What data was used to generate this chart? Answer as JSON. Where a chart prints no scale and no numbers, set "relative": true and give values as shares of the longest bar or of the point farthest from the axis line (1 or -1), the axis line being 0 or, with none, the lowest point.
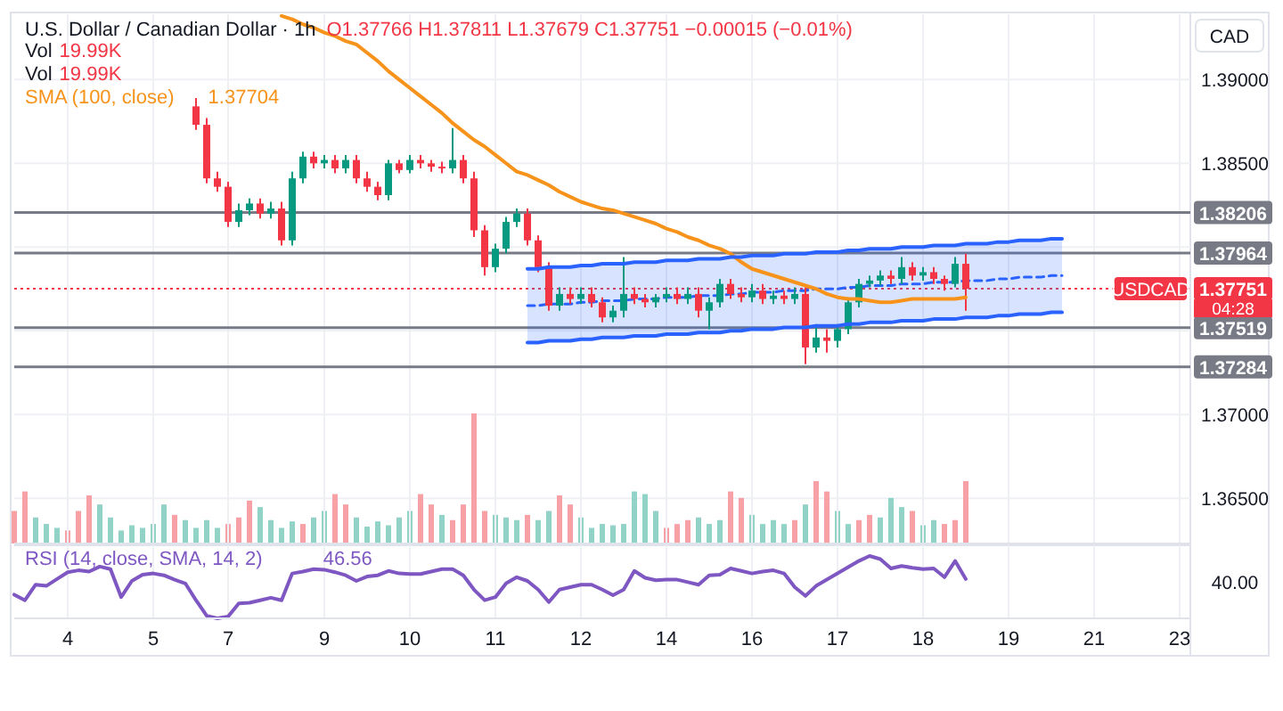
{
  "chart_data": [
    {
      "type": "candlestick",
      "title": "U.S. Dollar / Canadian Dollar · 1h",
      "subtitle": "O1.37766 H1.37811 L1.37679 C1.37751 −0.00015 (−0.01%)",
      "ylabel": "CAD",
      "annotations": [
        "Vol 19.99K",
        "Vol 19.99K",
        "1.37704",
        {
          "text": "USDCAD",
          "y": 1.37751
        },
        "04:28"
      ],
      "categories": [
        null,
        null,
        null,
        null,
        null,
        "4",
        null,
        null,
        null,
        null,
        null,
        null,
        null,
        "5",
        null,
        null,
        null,
        null,
        null,
        null,
        "7",
        null,
        null,
        null,
        null,
        null,
        null,
        null,
        null,
        "9",
        null,
        null,
        null,
        null,
        null,
        null,
        null,
        "10",
        null,
        null,
        null,
        null,
        null,
        null,
        null,
        "11",
        null,
        null,
        null,
        null,
        null,
        null,
        null,
        "12",
        null,
        null,
        null,
        null,
        null,
        null,
        null,
        "14",
        null,
        null,
        null,
        null,
        null,
        null,
        null,
        "16",
        null,
        null,
        null,
        null,
        null,
        null,
        null,
        "17",
        null,
        null,
        null,
        null,
        null,
        null,
        null,
        "18",
        null,
        null,
        null,
        null,
        null,
        null,
        null,
        "19",
        null,
        null,
        null,
        null,
        null,
        null,
        null,
        "21",
        null,
        null,
        null,
        null,
        null,
        null,
        null,
        "23",
        null
      ],
      "ohlc": [
        null,
        null,
        null,
        null,
        null,
        null,
        null,
        null,
        null,
        null,
        null,
        null,
        null,
        null,
        null,
        null,
        null,
        [
          1.3884,
          1.3889,
          1.387,
          1.3873
        ],
        [
          1.3873,
          1.3877,
          1.3838,
          1.3841
        ],
        [
          1.3841,
          1.3845,
          1.3833,
          1.3836
        ],
        [
          1.3836,
          1.3839,
          1.3812,
          1.3815
        ],
        [
          1.3815,
          1.3826,
          1.3812,
          1.3822
        ],
        [
          1.3822,
          1.3829,
          1.3819,
          1.3826
        ],
        [
          1.3826,
          1.3829,
          1.3817,
          1.382
        ],
        [
          1.382,
          1.3827,
          1.3817,
          1.3823
        ],
        [
          1.3823,
          1.3827,
          1.3801,
          1.3804
        ],
        [
          1.3804,
          1.3845,
          1.3801,
          1.3841
        ],
        [
          1.3841,
          1.3857,
          1.3838,
          1.3854
        ],
        [
          1.3854,
          1.3857,
          1.3847,
          1.385
        ],
        [
          1.385,
          1.3855,
          1.3847,
          1.3852
        ],
        [
          1.3852,
          1.3855,
          1.3844,
          1.3847
        ],
        [
          1.3847,
          1.3855,
          1.3844,
          1.3852
        ],
        [
          1.3852,
          1.3855,
          1.3838,
          1.3841
        ],
        [
          1.3841,
          1.3845,
          1.3833,
          1.3836
        ],
        [
          1.3836,
          1.3839,
          1.3828,
          1.3831
        ],
        [
          1.3831,
          1.3852,
          1.3828,
          1.385
        ],
        [
          1.385,
          1.3852,
          1.3844,
          1.3846
        ],
        [
          1.3846,
          1.3855,
          1.3844,
          1.3852
        ],
        [
          1.3852,
          1.3855,
          1.3847,
          1.385
        ],
        [
          1.385,
          1.3852,
          1.3845,
          1.3848
        ],
        [
          1.3848,
          1.3851,
          1.3844,
          1.3847
        ],
        [
          1.3847,
          1.3871,
          1.3844,
          1.3852
        ],
        [
          1.3852,
          1.3855,
          1.3838,
          1.3841
        ],
        [
          1.3841,
          1.3845,
          1.3806,
          1.381
        ],
        [
          1.381,
          1.3813,
          1.3783,
          1.3788
        ],
        [
          1.3788,
          1.3802,
          1.3785,
          1.3799
        ],
        [
          1.3799,
          1.3818,
          1.3796,
          1.3815
        ],
        [
          1.3815,
          1.3823,
          1.3812,
          1.382
        ],
        [
          1.382,
          1.3823,
          1.3801,
          1.3804
        ],
        [
          1.3804,
          1.3807,
          1.3785,
          1.3788
        ],
        [
          1.3788,
          1.3791,
          1.3762,
          1.3765
        ],
        [
          1.3765,
          1.3776,
          1.3762,
          1.3772
        ],
        [
          1.3772,
          1.3776,
          1.3766,
          1.3769
        ],
        [
          1.3769,
          1.3776,
          1.3766,
          1.3772
        ],
        [
          1.3772,
          1.3776,
          1.3764,
          1.3767
        ],
        [
          1.3767,
          1.377,
          1.3755,
          1.3758
        ],
        [
          1.3758,
          1.3765,
          1.3755,
          1.3762
        ],
        [
          1.3762,
          1.3794,
          1.3758,
          1.3772
        ],
        [
          1.3772,
          1.3776,
          1.3766,
          1.3769
        ],
        [
          1.3769,
          1.3772,
          1.3764,
          1.3767
        ],
        [
          1.3767,
          1.3772,
          1.3764,
          1.377
        ],
        [
          1.377,
          1.3776,
          1.3767,
          1.3772
        ],
        [
          1.3772,
          1.3776,
          1.3766,
          1.3769
        ],
        [
          1.3769,
          1.3776,
          1.3766,
          1.3772
        ],
        [
          1.3772,
          1.3776,
          1.3758,
          1.3762
        ],
        [
          1.3762,
          1.377,
          1.3751,
          1.3767
        ],
        [
          1.3767,
          1.3781,
          1.3764,
          1.3778
        ],
        [
          1.3778,
          1.3781,
          1.3769,
          1.3772
        ],
        [
          1.3772,
          1.3776,
          1.3767,
          1.377
        ],
        [
          1.377,
          1.3778,
          1.3767,
          1.3774
        ],
        [
          1.3774,
          1.3778,
          1.3766,
          1.3769
        ],
        [
          1.3769,
          1.3774,
          1.3766,
          1.3771
        ],
        [
          1.3771,
          1.3774,
          1.3766,
          1.3769
        ],
        [
          1.3769,
          1.3776,
          1.3766,
          1.3772
        ],
        [
          1.3772,
          1.3776,
          1.373,
          1.374
        ],
        [
          1.374,
          1.3754,
          1.3737,
          1.3746
        ],
        [
          1.3746,
          1.3751,
          1.3737,
          1.3744
        ],
        [
          1.3744,
          1.3754,
          1.374,
          1.3751
        ],
        [
          1.3751,
          1.377,
          1.3748,
          1.3767
        ],
        [
          1.3767,
          1.3781,
          1.3764,
          1.3778
        ],
        [
          1.3778,
          1.3783,
          1.3776,
          1.378
        ],
        [
          1.378,
          1.3786,
          1.3777,
          1.3783
        ],
        [
          1.3783,
          1.3786,
          1.3778,
          1.3781
        ],
        [
          1.3781,
          1.3794,
          1.3778,
          1.3788
        ],
        [
          1.3788,
          1.3791,
          1.378,
          1.3783
        ],
        [
          1.3783,
          1.3788,
          1.378,
          1.3785
        ],
        [
          1.3785,
          1.3788,
          1.3778,
          1.3781
        ],
        [
          1.3781,
          1.3783,
          1.3774,
          1.3778
        ],
        [
          1.3778,
          1.3794,
          1.3776,
          1.379
        ],
        [
          1.379,
          1.3796,
          1.3762,
          1.37751
        ],
        null,
        null,
        null,
        null,
        null,
        null,
        null,
        null,
        null,
        null,
        null,
        null,
        null,
        null,
        null,
        null,
        null,
        null,
        null,
        null,
        null
      ],
      "colors": [
        null,
        null,
        null,
        null,
        null,
        null,
        null,
        null,
        null,
        null,
        null,
        null,
        null,
        null,
        null,
        null,
        null,
        "#f23645",
        "#f23645",
        "#f23645",
        "#f23645",
        "#089981",
        "#089981",
        "#f23645",
        "#089981",
        "#f23645",
        "#089981",
        "#089981",
        "#f23645",
        "#089981",
        "#f23645",
        "#089981",
        "#f23645",
        "#f23645",
        "#f23645",
        "#089981",
        "#f23645",
        "#089981",
        "#f23645",
        "#f23645",
        "#f23645",
        "#089981",
        "#f23645",
        "#f23645",
        "#f23645",
        "#089981",
        "#089981",
        "#089981",
        "#f23645",
        "#f23645",
        "#f23645",
        "#089981",
        "#f23645",
        "#089981",
        "#f23645",
        "#f23645",
        "#089981",
        "#089981",
        "#f23645",
        "#f23645",
        "#089981",
        "#089981",
        "#f23645",
        "#089981",
        "#f23645",
        "#089981",
        "#089981",
        "#f23645",
        "#f23645",
        "#089981",
        "#f23645",
        "#089981",
        "#f23645",
        "#089981",
        "#f23645",
        "#089981",
        "#f23645",
        "#089981",
        "#089981",
        "#089981",
        "#089981",
        "#089981",
        "#f23645",
        "#089981",
        "#f23645",
        "#089981",
        "#f23645",
        "#f23645",
        "#089981",
        "#f23645",
        null,
        null,
        null,
        null,
        null,
        null,
        null,
        null,
        null,
        null,
        null,
        null,
        null,
        null,
        null,
        null,
        null,
        null,
        null,
        null,
        null
      ],
      "series": [
        {
          "name": "SMA (100, close)",
          "type": "line",
          "color": "#f7931a",
          "values": [
            null,
            null,
            null,
            null,
            null,
            null,
            null,
            null,
            null,
            null,
            null,
            null,
            null,
            null,
            null,
            null,
            null,
            null,
            null,
            null,
            null,
            null,
            null,
            null,
            null,
            1.3938,
            1.3936,
            1.3933,
            1.3931,
            1.3928,
            1.3926,
            1.3923,
            1.3921,
            1.3916,
            1.3911,
            1.3905,
            1.39,
            1.3895,
            1.389,
            1.3885,
            1.388,
            1.3874,
            1.3869,
            1.3864,
            1.386,
            1.3855,
            1.385,
            1.3845,
            1.3843,
            1.384,
            1.3837,
            1.3833,
            1.383,
            1.3827,
            1.3825,
            1.3823,
            1.3822,
            1.382,
            1.3818,
            1.3816,
            1.3814,
            1.3811,
            1.3809,
            1.3806,
            1.3804,
            1.3801,
            1.3799,
            1.3796,
            1.3791,
            1.3787,
            1.3785,
            1.3783,
            1.3781,
            1.3779,
            1.3777,
            1.3775,
            1.3772,
            1.377,
            1.3769,
            1.3769,
            1.3768,
            1.3767,
            1.3767,
            1.3768,
            1.3769,
            1.3769,
            1.3769,
            1.3769,
            1.3769,
            1.377,
            null,
            null,
            null,
            null,
            null,
            null,
            null,
            null,
            null,
            null,
            null,
            null,
            null,
            null,
            null,
            null,
            null,
            null,
            null,
            null,
            null
          ]
        },
        {
          "type": "line",
          "color": "#2962ff",
          "line_style": "dashed",
          "values": [
            null,
            null,
            null,
            null,
            null,
            null,
            null,
            null,
            null,
            null,
            null,
            null,
            null,
            null,
            null,
            null,
            null,
            null,
            null,
            null,
            null,
            null,
            null,
            null,
            null,
            null,
            null,
            null,
            null,
            null,
            null,
            null,
            null,
            null,
            null,
            null,
            null,
            null,
            null,
            null,
            null,
            null,
            null,
            null,
            null,
            null,
            null,
            null,
            1.3765,
            1.3765,
            1.3766,
            1.3766,
            1.3766,
            1.3767,
            1.3767,
            1.3768,
            1.3768,
            1.3768,
            1.3769,
            1.3769,
            1.3769,
            1.377,
            1.377,
            1.377,
            1.3771,
            1.3771,
            1.3771,
            1.3772,
            1.3772,
            1.3773,
            1.3773,
            1.3773,
            1.3774,
            1.3774,
            1.3774,
            1.3775,
            1.3775,
            1.3775,
            1.3776,
            1.3776,
            1.3777,
            1.3777,
            1.3777,
            1.3778,
            1.3778,
            1.3778,
            1.3779,
            1.3779,
            1.3779,
            1.378,
            1.378,
            1.378,
            1.3781,
            1.3781,
            1.3782,
            1.3782,
            1.3782,
            1.3783,
            1.3783,
            null,
            null,
            null,
            null,
            null,
            null,
            null,
            null,
            null,
            null,
            null,
            null
          ],
          "upper": [
            null,
            null,
            null,
            null,
            null,
            null,
            null,
            null,
            null,
            null,
            null,
            null,
            null,
            null,
            null,
            null,
            null,
            null,
            null,
            null,
            null,
            null,
            null,
            null,
            null,
            null,
            null,
            null,
            null,
            null,
            null,
            null,
            null,
            null,
            null,
            null,
            null,
            null,
            null,
            null,
            null,
            null,
            null,
            null,
            null,
            null,
            null,
            null,
            1.3787,
            1.3787,
            1.3788,
            1.3788,
            1.3788,
            1.3789,
            1.3789,
            1.379,
            1.379,
            1.379,
            1.3791,
            1.3791,
            1.3791,
            1.3792,
            1.3792,
            1.3792,
            1.3793,
            1.3793,
            1.3793,
            1.3794,
            1.3794,
            1.3795,
            1.3795,
            1.3795,
            1.3796,
            1.3796,
            1.3796,
            1.3797,
            1.3797,
            1.3797,
            1.3798,
            1.3798,
            1.3799,
            1.3799,
            1.3799,
            1.38,
            1.38,
            1.38,
            1.3801,
            1.3801,
            1.3801,
            1.3802,
            1.3802,
            1.3802,
            1.3803,
            1.3803,
            1.3804,
            1.3804,
            1.3804,
            1.3805,
            1.3805,
            null,
            null,
            null,
            null,
            null,
            null,
            null,
            null,
            null,
            null,
            null,
            null
          ],
          "lower": [
            null,
            null,
            null,
            null,
            null,
            null,
            null,
            null,
            null,
            null,
            null,
            null,
            null,
            null,
            null,
            null,
            null,
            null,
            null,
            null,
            null,
            null,
            null,
            null,
            null,
            null,
            null,
            null,
            null,
            null,
            null,
            null,
            null,
            null,
            null,
            null,
            null,
            null,
            null,
            null,
            null,
            null,
            null,
            null,
            null,
            null,
            null,
            null,
            1.3743,
            1.3743,
            1.3744,
            1.3744,
            1.3744,
            1.3745,
            1.3745,
            1.3746,
            1.3746,
            1.3746,
            1.3747,
            1.3747,
            1.3747,
            1.3748,
            1.3748,
            1.3748,
            1.3749,
            1.3749,
            1.3749,
            1.375,
            1.375,
            1.3751,
            1.3751,
            1.3751,
            1.3752,
            1.3752,
            1.3752,
            1.3753,
            1.3753,
            1.3753,
            1.3754,
            1.3754,
            1.3755,
            1.3755,
            1.3755,
            1.3756,
            1.3756,
            1.3756,
            1.3757,
            1.3757,
            1.3757,
            1.3758,
            1.3758,
            1.3758,
            1.3759,
            1.3759,
            1.376,
            1.376,
            1.376,
            1.3761,
            1.3761,
            null,
            null,
            null,
            null,
            null,
            null,
            null,
            null,
            null,
            null,
            null,
            null
          ]
        },
        {
          "type": "line",
          "color": "#2962ff",
          "values": [
            null,
            null,
            null,
            null,
            null,
            null,
            null,
            null,
            null,
            null,
            null,
            null,
            null,
            null,
            null,
            null,
            null,
            null,
            null,
            null,
            null,
            null,
            null,
            null,
            null,
            null,
            null,
            null,
            null,
            null,
            null,
            null,
            null,
            null,
            null,
            null,
            null,
            null,
            null,
            null,
            null,
            null,
            null,
            null,
            null,
            null,
            null,
            null,
            1.3787,
            1.3787,
            1.3788,
            1.3788,
            1.3788,
            1.3789,
            1.3789,
            1.379,
            1.379,
            1.379,
            1.3791,
            1.3791,
            1.3791,
            1.3792,
            1.3792,
            1.3792,
            1.3793,
            1.3793,
            1.3793,
            1.3794,
            1.3794,
            1.3795,
            1.3795,
            1.3795,
            1.3796,
            1.3796,
            1.3796,
            1.3797,
            1.3797,
            1.3797,
            1.3798,
            1.3798,
            1.3799,
            1.3799,
            1.3799,
            1.38,
            1.38,
            1.38,
            1.3801,
            1.3801,
            1.3801,
            1.3802,
            1.3802,
            1.3802,
            1.3803,
            1.3803,
            1.3804,
            1.3804,
            1.3804,
            1.3805,
            1.3805,
            null,
            null,
            null,
            null,
            null,
            null,
            null,
            null,
            null,
            null,
            null,
            null
          ]
        },
        {
          "type": "line",
          "color": "#2962ff",
          "values": [
            null,
            null,
            null,
            null,
            null,
            null,
            null,
            null,
            null,
            null,
            null,
            null,
            null,
            null,
            null,
            null,
            null,
            null,
            null,
            null,
            null,
            null,
            null,
            null,
            null,
            null,
            null,
            null,
            null,
            null,
            null,
            null,
            null,
            null,
            null,
            null,
            null,
            null,
            null,
            null,
            null,
            null,
            null,
            null,
            null,
            null,
            null,
            null,
            1.3743,
            1.3743,
            1.3744,
            1.3744,
            1.3744,
            1.3745,
            1.3745,
            1.3746,
            1.3746,
            1.3746,
            1.3747,
            1.3747,
            1.3747,
            1.3748,
            1.3748,
            1.3748,
            1.3749,
            1.3749,
            1.3749,
            1.375,
            1.375,
            1.3751,
            1.3751,
            1.3751,
            1.3752,
            1.3752,
            1.3752,
            1.3753,
            1.3753,
            1.3753,
            1.3754,
            1.3754,
            1.3755,
            1.3755,
            1.3755,
            1.3756,
            1.3756,
            1.3756,
            1.3757,
            1.3757,
            1.3757,
            1.3758,
            1.3758,
            1.3758,
            1.3759,
            1.3759,
            1.376,
            1.376,
            1.376,
            1.3761,
            1.3761,
            null,
            null,
            null,
            null,
            null,
            null,
            null,
            null,
            null,
            null,
            null,
            null
          ]
        }
      ],
      "ylim": [
        1.3623,
        1.3939
      ],
      "yticks": [
        {
          "value": 1.365,
          "label": "1.36500"
        },
        {
          "value": 1.37,
          "label": "1.37000"
        },
        {
          "value": 1.375,
          "label": null
        },
        {
          "value": 1.38,
          "label": null
        },
        {
          "value": 1.385,
          "label": "1.38500"
        },
        {
          "value": 1.39,
          "label": "1.39000"
        }
      ],
      "ref_lines": [
        {
          "axis": "y",
          "value": 1.38206,
          "label": "1.38206",
          "color": "#787b86"
        },
        {
          "axis": "y",
          "value": 1.37964,
          "label": "1.37964",
          "color": "#787b86"
        },
        {
          "axis": "y",
          "value": 1.37519,
          "label": "1.37519",
          "color": "#787b86"
        },
        {
          "axis": "y",
          "value": 1.37284,
          "label": "1.37284",
          "color": "#787b86"
        },
        {
          "axis": "y",
          "value": 1.37751,
          "label": "1.37751",
          "color": "#f23645",
          "line_style": "dotted"
        }
      ],
      "grid": true,
      "legend": "top left",
      "tick_labels": "y"
    },
    {
      "type": "bar",
      "relative": true,
      "tick_labels": false,
      "grid": "x",
      "categories": [
        null,
        null,
        null,
        null,
        null,
        "4",
        null,
        null,
        null,
        null,
        null,
        null,
        null,
        "5",
        null,
        null,
        null,
        null,
        null,
        null,
        "7",
        null,
        null,
        null,
        null,
        null,
        null,
        null,
        null,
        "9",
        null,
        null,
        null,
        null,
        null,
        null,
        null,
        "10",
        null,
        null,
        null,
        null,
        null,
        null,
        null,
        "11",
        null,
        null,
        null,
        null,
        null,
        null,
        null,
        "12",
        null,
        null,
        null,
        null,
        null,
        null,
        null,
        "14",
        null,
        null,
        null,
        null,
        null,
        null,
        null,
        "16",
        null,
        null,
        null,
        null,
        null,
        null,
        null,
        "17",
        null,
        null,
        null,
        null,
        null,
        null,
        null,
        "18",
        null,
        null,
        null,
        null,
        null,
        null,
        null,
        "19",
        null,
        null,
        null,
        null,
        null,
        null,
        null,
        "21",
        null,
        null,
        null,
        null,
        null,
        null,
        null,
        "23",
        null
      ],
      "values": [
        0.25,
        0.4,
        0.2,
        0.15,
        0.12,
        0.1,
        0.25,
        0.37,
        0.3,
        0.2,
        0.1,
        0.14,
        0.12,
        0.15,
        0.3,
        0.22,
        0.18,
        0.12,
        0.18,
        0.12,
        0.15,
        0.2,
        0.33,
        0.28,
        0.18,
        0.12,
        0.17,
        0.15,
        0.2,
        0.25,
        0.38,
        0.3,
        0.2,
        0.13,
        0.17,
        0.14,
        0.2,
        0.25,
        0.38,
        0.3,
        0.22,
        0.18,
        0.3,
        1,
        0.25,
        0.22,
        0.2,
        0.18,
        0.22,
        0.18,
        0.25,
        0.37,
        0.3,
        0.2,
        0.12,
        0.15,
        0.14,
        0.15,
        0.4,
        0.38,
        0.25,
        0.12,
        0.15,
        0.18,
        0.2,
        0.15,
        0.18,
        0.4,
        0.35,
        0.22,
        0.15,
        0.18,
        0.15,
        0.18,
        0.3,
        0.48,
        0.4,
        0.25,
        0.15,
        0.18,
        0.22,
        0.2,
        0.35,
        0.28,
        0.25,
        0.14,
        0.18,
        0.15,
        0.18,
        0.48,
        null,
        null,
        null,
        null,
        null,
        null,
        null,
        null,
        null,
        null,
        null,
        null,
        null,
        null,
        null,
        null,
        null,
        null,
        null,
        null,
        null
      ],
      "colors": [
        "#f7a1a7",
        "#f7a1a7",
        "#92d3c8",
        "#92d3c8",
        "#92d3c8",
        "#f7a1a7",
        "#f7a1a7",
        "#f7a1a7",
        "#92d3c8",
        "#92d3c8",
        "#92d3c8",
        "#92d3c8",
        "#92d3c8",
        "#92d3c8",
        "#92d3c8",
        "#f7a1a7",
        "#92d3c8",
        "#92d3c8",
        "#92d3c8",
        "#92d3c8",
        "#f7a1a7",
        "#f7a1a7",
        "#f7a1a7",
        "#92d3c8",
        "#92d3c8",
        "#92d3c8",
        "#92d3c8",
        "#f7a1a7",
        "#92d3c8",
        "#92d3c8",
        "#f7a1a7",
        "#f7a1a7",
        "#92d3c8",
        "#92d3c8",
        "#92d3c8",
        "#92d3c8",
        "#92d3c8",
        "#92d3c8",
        "#f7a1a7",
        "#f7a1a7",
        "#92d3c8",
        "#f7a1a7",
        "#f7a1a7",
        "#f7a1a7",
        "#f7a1a7",
        "#92d3c8",
        "#92d3c8",
        "#92d3c8",
        "#f7a1a7",
        "#92d3c8",
        "#92d3c8",
        "#f7a1a7",
        "#f7a1a7",
        "#92d3c8",
        "#92d3c8",
        "#92d3c8",
        "#92d3c8",
        "#92d3c8",
        "#92d3c8",
        "#92d3c8",
        "#92d3c8",
        "#f7a1a7",
        "#f7a1a7",
        "#f7a1a7",
        "#92d3c8",
        "#92d3c8",
        "#92d3c8",
        "#f7a1a7",
        "#f7a1a7",
        "#92d3c8",
        "#92d3c8",
        "#92d3c8",
        "#92d3c8",
        "#f7a1a7",
        "#92d3c8",
        "#f7a1a7",
        "#f7a1a7",
        "#92d3c8",
        "#92d3c8",
        "#f7a1a7",
        "#f7a1a7",
        "#92d3c8",
        "#92d3c8",
        "#92d3c8",
        "#f7a1a7",
        "#92d3c8",
        "#92d3c8",
        "#f7a1a7",
        "#f7a1a7",
        "#f7a1a7",
        null,
        null,
        null,
        null,
        null,
        null,
        null,
        null,
        null,
        null,
        null,
        null,
        null,
        null,
        null,
        null,
        null,
        null,
        null,
        null,
        null
      ]
    },
    {
      "type": "line",
      "relative": true,
      "legend": "top left",
      "grid": "x",
      "tick_labels": "x",
      "annotations": [
        "46.56",
        "40.00"
      ],
      "categories": [
        null,
        null,
        null,
        null,
        null,
        "4",
        null,
        null,
        null,
        null,
        null,
        null,
        null,
        "5",
        null,
        null,
        null,
        null,
        null,
        null,
        "7",
        null,
        null,
        null,
        null,
        null,
        null,
        null,
        null,
        "9",
        null,
        null,
        null,
        null,
        null,
        null,
        null,
        "10",
        null,
        null,
        null,
        null,
        null,
        null,
        null,
        "11",
        null,
        null,
        null,
        null,
        null,
        null,
        null,
        "12",
        null,
        null,
        null,
        null,
        null,
        null,
        null,
        "14",
        null,
        null,
        null,
        null,
        null,
        null,
        null,
        "16",
        null,
        null,
        null,
        null,
        null,
        null,
        null,
        "17",
        null,
        null,
        null,
        null,
        null,
        null,
        null,
        "18",
        null,
        null,
        null,
        null,
        null,
        null,
        null,
        "19",
        null,
        null,
        null,
        null,
        null,
        null,
        null,
        "21",
        null,
        null,
        null,
        null,
        null,
        null,
        null,
        "23",
        null
      ],
      "series": [
        {
          "name": "RSI (14, close, SMA, 14, 2)",
          "type": "line",
          "color": "#7e57c2",
          "values": [
            0.38,
            0.29,
            0.54,
            0.52,
            0.63,
            0.74,
            0.77,
            0.75,
            0.83,
            0.79,
            0.34,
            0.6,
            0.7,
            0.72,
            0.69,
            0.62,
            0.56,
            0.29,
            0.04,
            0,
            0.03,
            0.24,
            0.25,
            0.29,
            0.33,
            0.29,
            0.72,
            0.75,
            0.79,
            0.78,
            0.74,
            0.69,
            0.6,
            0.67,
            0.69,
            0.76,
            0.72,
            0.71,
            0.71,
            0.75,
            0.79,
            0.79,
            0.69,
            0.46,
            0.29,
            0.34,
            0.56,
            0.66,
            0.6,
            0.46,
            0.26,
            0.46,
            0.5,
            0.54,
            0.54,
            0.46,
            0.37,
            0.46,
            0.76,
            0.65,
            0.61,
            0.62,
            0.62,
            0.58,
            0.54,
            0.69,
            0.7,
            0.8,
            0.76,
            0.72,
            0.75,
            0.77,
            0.72,
            0.5,
            0.36,
            0.52,
            0.62,
            0.72,
            0.82,
            0.92,
            1,
            0.95,
            0.8,
            0.84,
            0.81,
            0.79,
            0.8,
            0.66,
            0.92,
            0.63,
            null,
            null,
            null,
            null,
            null,
            null,
            null,
            null,
            null,
            null,
            null,
            null,
            null,
            null,
            null,
            null,
            null,
            null,
            null,
            null,
            null
          ]
        }
      ]
    }
  ]
}
